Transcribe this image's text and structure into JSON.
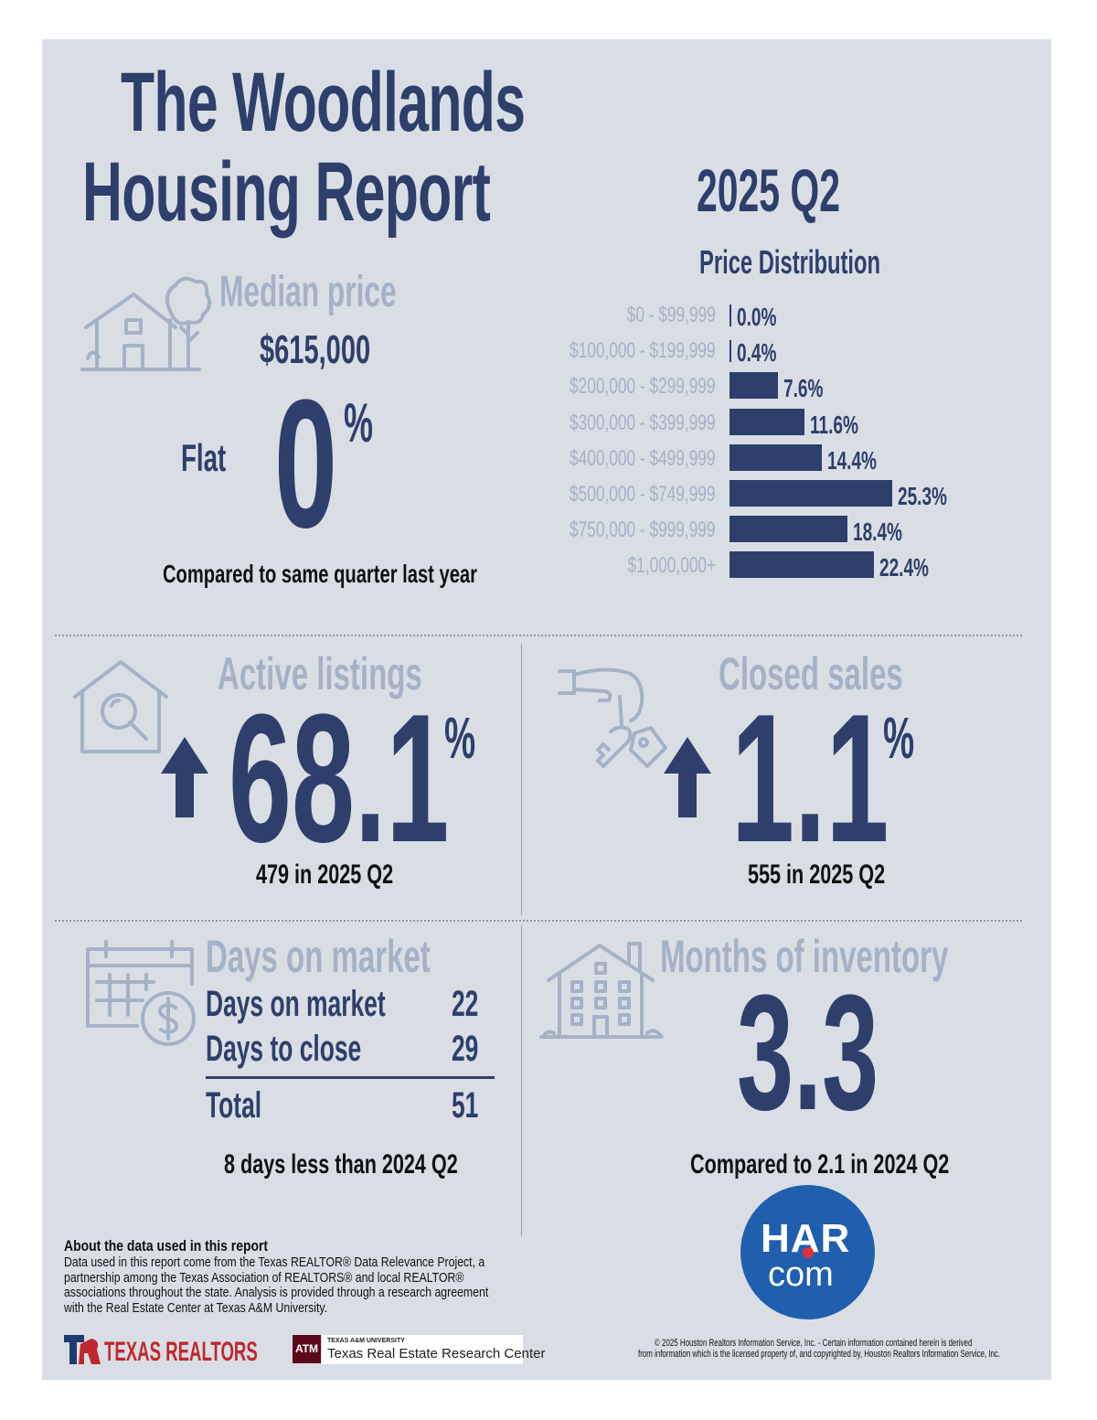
{
  "header": {
    "title_line1": "The Woodlands",
    "title_line2": "Housing Report",
    "period": "2025 Q2"
  },
  "price_distribution": {
    "title": "Price Distribution",
    "chart_data": {
      "type": "bar",
      "orientation": "horizontal",
      "title": "Price Distribution",
      "categories": [
        "$0 - $99,999",
        "$100,000 - $199,999",
        "$200,000 - $299,999",
        "$300,000 - $399,999",
        "$400,000 - $499,999",
        "$500,000 - $749,999",
        "$750,000 - $999,999",
        "$1,000,000+"
      ],
      "values": [
        0.0,
        0.4,
        7.6,
        11.6,
        14.4,
        25.3,
        18.4,
        22.4
      ],
      "value_labels": [
        "0.0%",
        "0.4%",
        "7.6%",
        "11.6%",
        "14.4%",
        "25.3%",
        "18.4%",
        "22.4%"
      ],
      "unit": "%",
      "xlim": [
        0,
        25.3
      ]
    }
  },
  "median_price": {
    "title": "Median price",
    "value": "$615,000",
    "trend_word": "Flat",
    "change": "0",
    "percent_sign": "%",
    "comparison": "Compared to same quarter last year"
  },
  "active_listings": {
    "title": "Active listings",
    "change": "68.1",
    "percent_sign": "%",
    "detail": "479 in 2025 Q2"
  },
  "closed_sales": {
    "title": "Closed sales",
    "change": "1.1",
    "percent_sign": "%",
    "detail": "555 in 2025 Q2"
  },
  "days_on_market": {
    "title": "Days on market",
    "rows": [
      {
        "label": "Days on market",
        "value": "22"
      },
      {
        "label": "Days to close",
        "value": "29"
      }
    ],
    "total_label": "Total",
    "total_value": "51",
    "comparison": "8 days less than 2024 Q2"
  },
  "months_inventory": {
    "title": "Months of inventory",
    "value": "3.3",
    "comparison": "Compared to 2.1 in 2024 Q2"
  },
  "footer": {
    "about_title": "About the data used in this report",
    "about_text": "Data used in this report come from the Texas REALTOR® Data Relevance Project, a partnership among the Texas Association of REALTORS® and local REALTOR® associations throughout the state. Analysis is provided through a research agreement with the Real Estate Center at Texas A&M University.",
    "texas_realtors": "TEXAS REALTORS",
    "tamu_small": "TEXAS A&M UNIVERSITY",
    "tamu_name": "Texas Real Estate Research Center",
    "tamu_mark": "ATM",
    "har_top": "HAR",
    "har_bottom": "com",
    "copyright_line1": "© 2025 Houston Realtors Information Service, Inc. - Certain information contained herein is derived",
    "copyright_line2": "from information which is the licensed property of, and copyrighted by, Houston Realtors Information Service, Inc."
  },
  "colors": {
    "navy": "#2e3f6b",
    "muted": "#a4b2c6",
    "panel": "#d9dee5",
    "texas_red": "#c0282d",
    "har_blue": "#1f5fad"
  }
}
